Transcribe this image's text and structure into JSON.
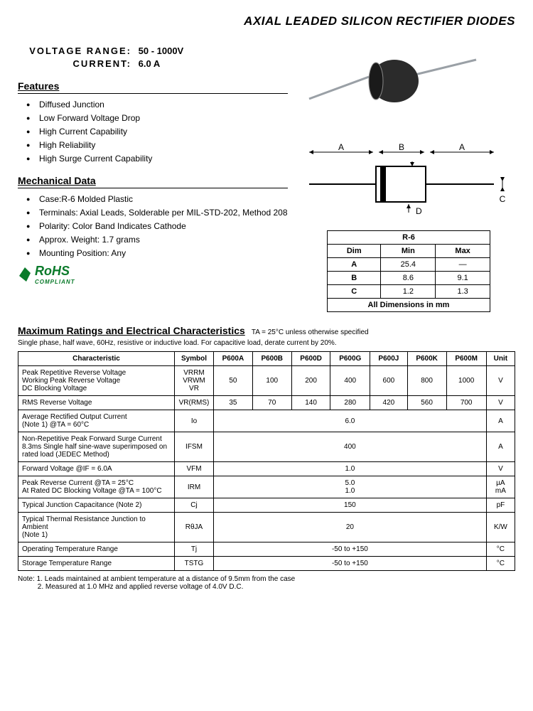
{
  "title": "AXIAL LEADED SILICON RECTIFIER DIODES",
  "specs": {
    "voltage_label": "VOLTAGE  RANGE:",
    "voltage_value": "50 - 1000V",
    "current_label": "CURRENT:",
    "current_value": "6.0 A"
  },
  "features": {
    "heading": "Features",
    "items": [
      "Diffused Junction",
      "Low Forward Voltage Drop",
      "High Current Capability",
      "High Reliability",
      "High Surge Current Capability"
    ]
  },
  "mechanical": {
    "heading": "Mechanical Data",
    "items": [
      "Case:R-6 Molded Plastic",
      "Terminals: Axial Leads, Solderable per MIL-STD-202, Method 208",
      "Polarity: Color Band Indicates Cathode",
      "Approx. Weight: 1.7 grams",
      "Mounting Position: Any"
    ]
  },
  "rohs": {
    "main": "RoHS",
    "sub": "COMPLIANT"
  },
  "dim_labels": {
    "A": "A",
    "B": "B",
    "C": "C",
    "D": "D"
  },
  "dim_table": {
    "title": "R-6",
    "cols": [
      "Dim",
      "Min",
      "Max"
    ],
    "rows": [
      [
        "A",
        "25.4",
        "—"
      ],
      [
        "B",
        "8.6",
        "9.1"
      ],
      [
        "C",
        "1.2",
        "1.3"
      ]
    ],
    "footer": "All Dimensions in mm"
  },
  "ratings": {
    "heading": "Maximum Ratings and Electrical Characteristics",
    "cond": "TA = 25°C unless otherwise specified",
    "sub": "Single phase, half wave, 60Hz, resistive or inductive load. For capacitive load, derate current by 20%.",
    "cols": [
      "Characteristic",
      "Symbol",
      "P600A",
      "P600B",
      "P600D",
      "P600G",
      "P600J",
      "P600K",
      "P600M",
      "Unit"
    ],
    "rows": [
      {
        "char": "Peak Repetitive Reverse Voltage\nWorking Peak Reverse Voltage\nDC Blocking Voltage",
        "sym": "VRRM\nVRWM\nVR",
        "vals": [
          "50",
          "100",
          "200",
          "400",
          "600",
          "800",
          "1000"
        ],
        "unit": "V"
      },
      {
        "char": "RMS Reverse Voltage",
        "sym": "VR(RMS)",
        "vals": [
          "35",
          "70",
          "140",
          "280",
          "420",
          "560",
          "700"
        ],
        "unit": "V"
      },
      {
        "char": "Average Rectified Output Current\n(Note 1)                                  @TA = 60°C",
        "sym": "Io",
        "span": "6.0",
        "unit": "A"
      },
      {
        "char": "Non-Repetitive Peak Forward Surge Current\n8.3ms Single half sine-wave superimposed on\nrated load (JEDEC Method)",
        "sym": "IFSM",
        "span": "400",
        "unit": "A"
      },
      {
        "char": "Forward Voltage                           @IF = 6.0A",
        "sym": "VFM",
        "span": "1.0",
        "unit": "V"
      },
      {
        "char": "Peak Reverse Current            @TA = 25°C\nAt Rated DC Blocking Voltage    @TA = 100°C",
        "sym": "IRM",
        "span": "5.0\n1.0",
        "unit": "µA\nmA"
      },
      {
        "char": "Typical Junction Capacitance (Note 2)",
        "sym": "Cj",
        "span": "150",
        "unit": "pF"
      },
      {
        "char": "Typical Thermal Resistance Junction to Ambient\n(Note 1)",
        "sym": "RθJA",
        "span": "20",
        "unit": "K/W"
      },
      {
        "char": "Operating Temperature Range",
        "sym": "Tj",
        "span": "-50 to +150",
        "unit": "°C"
      },
      {
        "char": "Storage Temperature Range",
        "sym": "TSTG",
        "span": "-50 to +150",
        "unit": "°C"
      }
    ]
  },
  "notes": {
    "n1": "Note:  1. Leads maintained at ambient temperature at a distance of 9.5mm from the case",
    "n2": "          2. Measured at 1.0 MHz and applied reverse voltage of 4.0V D.C."
  },
  "colors": {
    "diode_body": "#2b2b2b",
    "lead": "#9aa0a6",
    "rohs_green": "#0a7a2a"
  }
}
